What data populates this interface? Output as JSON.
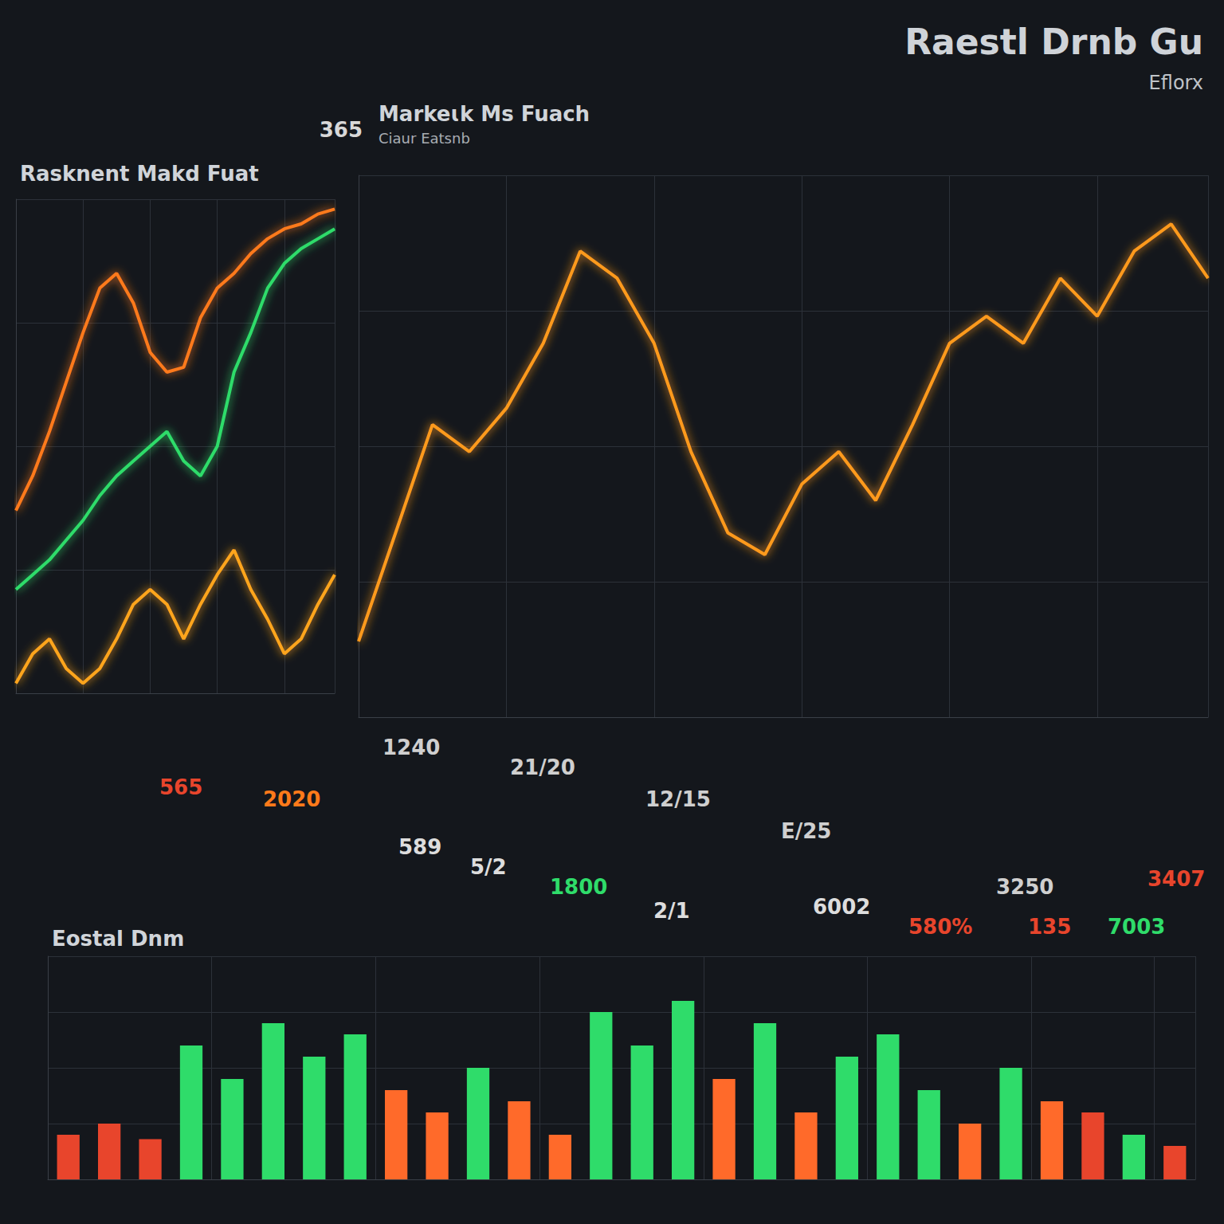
{
  "header": {
    "title": "Raestl Drnb Gu",
    "subtitle": "Eflorx"
  },
  "chart_data": [
    {
      "type": "line",
      "title": "Rasknent Makd Fuat",
      "categories": [
        null,
        null,
        null,
        null,
        null,
        null,
        null,
        null,
        null,
        null,
        null,
        null,
        null,
        null,
        null,
        null,
        null,
        null,
        null,
        null
      ],
      "series": [
        {
          "color": "#ff7a1a",
          "values": [
            37,
            44,
            53,
            63,
            73,
            82,
            85,
            79,
            69,
            65,
            66,
            76,
            82,
            85,
            89,
            92,
            94,
            95,
            97,
            98
          ]
        },
        {
          "color": "#2fdc6a",
          "values": [
            21,
            24,
            27,
            31,
            35,
            40,
            44,
            47,
            50,
            53,
            47,
            44,
            50,
            65,
            73,
            82,
            87,
            90,
            92,
            94
          ]
        },
        {
          "color": "#ffa51f",
          "values": [
            2,
            8,
            11,
            5,
            2,
            5,
            11,
            18,
            21,
            18,
            11,
            18,
            24,
            29,
            21,
            15,
            8,
            11,
            18,
            24
          ]
        }
      ],
      "ylim": [
        0,
        100
      ],
      "yticks": [
        0,
        25,
        50,
        75,
        100
      ],
      "grid": true,
      "tick_labels": false
    },
    {
      "type": "line",
      "title": "Markeɩk Ms Fuach",
      "subtitle": "Ciaur Eatsnb",
      "annotations": [
        "365",
        "1240",
        "21/20",
        "12/15",
        "E/25",
        "3250"
      ],
      "categories": [
        null,
        null,
        null,
        null,
        null,
        null,
        null,
        null,
        null,
        null,
        null,
        null,
        null,
        null,
        null,
        null,
        null,
        null,
        null,
        null,
        null,
        null,
        null,
        null
      ],
      "series": [
        {
          "color": "#ff9a1f",
          "values": [
            14,
            34,
            54,
            49,
            57,
            69,
            86,
            81,
            69,
            49,
            34,
            30,
            43,
            49,
            40,
            54,
            69,
            74,
            69,
            81,
            74,
            86,
            91,
            81
          ]
        }
      ],
      "ylim": [
        0,
        100
      ],
      "yticks": [
        0,
        25,
        50,
        75,
        100
      ],
      "grid": true,
      "tick_labels": false
    },
    {
      "type": "bar",
      "title": "Eostal Dnm",
      "annotations": [
        "565",
        "2020",
        "589",
        "5/2",
        "1800",
        "2/1",
        "6002",
        "580%",
        "135",
        "7003",
        "3407"
      ],
      "categories": [
        null,
        null,
        null,
        null,
        null,
        null,
        null,
        null,
        null,
        null,
        null,
        null,
        null,
        null,
        null,
        null,
        null,
        null,
        null,
        null,
        null,
        null,
        null,
        null,
        null,
        null,
        null,
        null
      ],
      "values": [
        20,
        25,
        18,
        60,
        45,
        70,
        55,
        65,
        40,
        30,
        50,
        35,
        20,
        75,
        60,
        80,
        45,
        70,
        30,
        55,
        65,
        40,
        25,
        50,
        35,
        30,
        20,
        15
      ],
      "colors": [
        "#e8452c",
        "#e8452c",
        "#e8452c",
        "#2fdc6a",
        "#2fdc6a",
        "#2fdc6a",
        "#2fdc6a",
        "#2fdc6a",
        "#ff6a2a",
        "#ff6a2a",
        "#2fdc6a",
        "#ff6a2a",
        "#ff6a2a",
        "#2fdc6a",
        "#2fdc6a",
        "#2fdc6a",
        "#ff6a2a",
        "#2fdc6a",
        "#ff6a2a",
        "#2fdc6a",
        "#2fdc6a",
        "#2fdc6a",
        "#ff6a2a",
        "#2fdc6a",
        "#ff6a2a",
        "#e8452c",
        "#2fdc6a",
        "#e8452c"
      ],
      "ylim": [
        0,
        100
      ],
      "yticks": [
        0,
        25,
        50,
        75,
        100
      ],
      "grid": true,
      "tick_labels": false
    }
  ]
}
